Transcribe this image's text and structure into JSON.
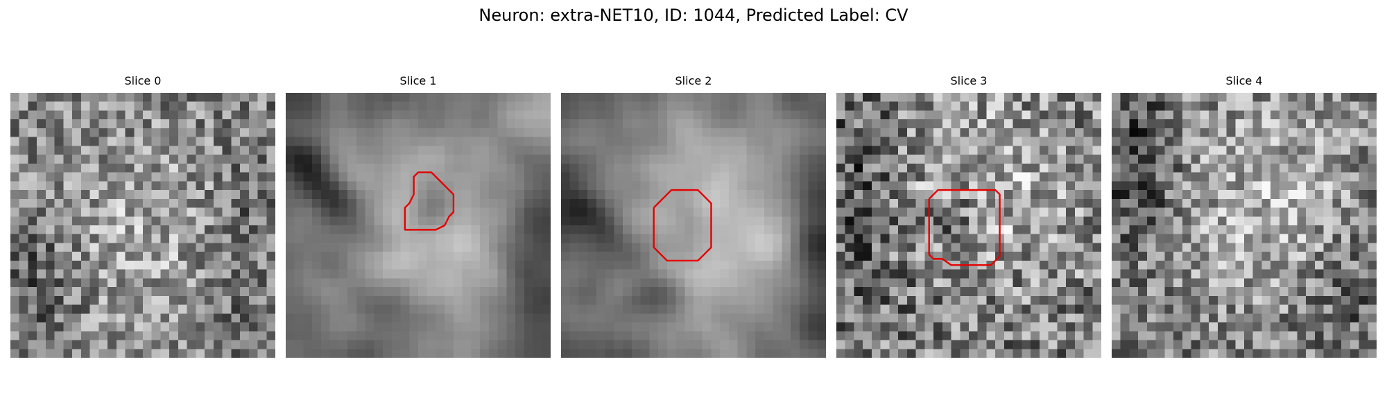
{
  "figure": {
    "title": "Neuron: extra-NET10, ID: 1044, Predicted Label: CV"
  },
  "panels": [
    {
      "title": "Slice 0",
      "has_roi": false
    },
    {
      "title": "Slice 1",
      "has_roi": true
    },
    {
      "title": "Slice 2",
      "has_roi": true
    },
    {
      "title": "Slice 3",
      "has_roi": true
    },
    {
      "title": "Slice 4",
      "has_roi": false
    }
  ],
  "colors": {
    "roi": "#e60000",
    "background": "#ffffff"
  }
}
